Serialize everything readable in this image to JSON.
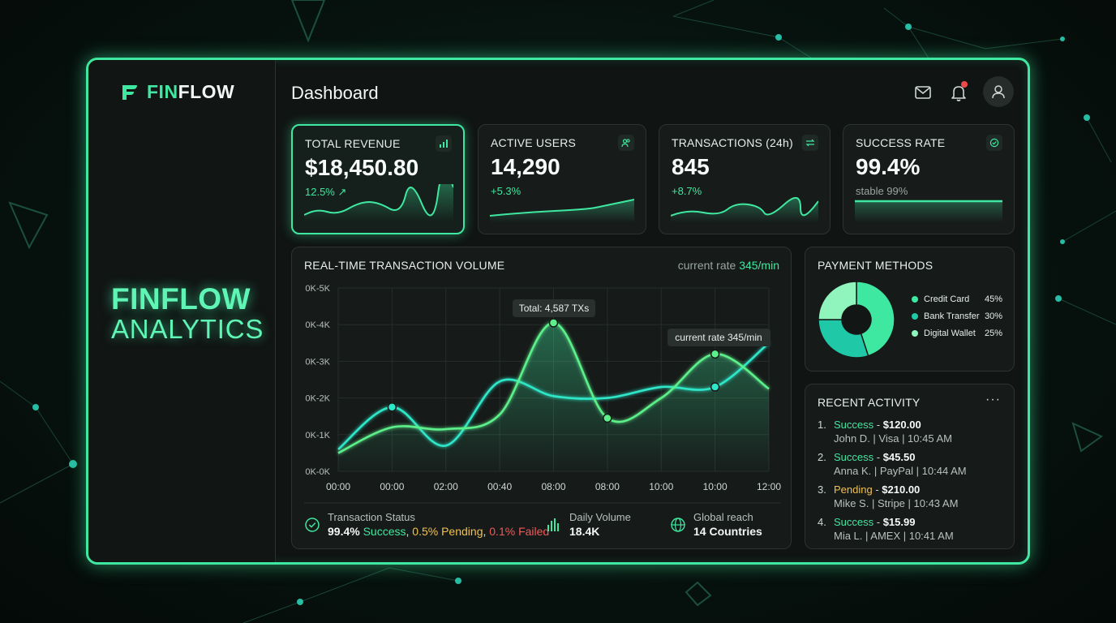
{
  "app": {
    "logo_fin": "FIN",
    "logo_flow": "FLOW",
    "brand_line1": "FINFLOW",
    "brand_line2": "ANALYTICS",
    "page_title": "Dashboard"
  },
  "header_icons": [
    "mail-icon",
    "bell-icon",
    "user-icon"
  ],
  "kpis": [
    {
      "label": "TOTAL REVENUE",
      "value": "$18,450.80",
      "change": "12.5% ↗",
      "icon": "bar-chart-icon"
    },
    {
      "label": "ACTIVE USERS",
      "value": "14,290",
      "change": "+5.3%",
      "icon": "users-icon"
    },
    {
      "label": "TRANSACTIONS (24h)",
      "value": "845",
      "change": "+8.7%",
      "icon": "swap-icon"
    },
    {
      "label": "SUCCESS RATE",
      "value": "99.4%",
      "change": "stable 99%",
      "icon": "check-circle-icon"
    }
  ],
  "volume": {
    "title": "REAL-TIME TRANSACTION VOLUME",
    "rate_prefix": "current rate",
    "rate_value": "345/min",
    "tooltip_peak": "Total: 4,587 TXs",
    "tooltip_rate": "current rate 345/min"
  },
  "chart_data": {
    "type": "line",
    "y_ticks": [
      "0K-0K",
      "0K-1K",
      "0K-2K",
      "0K-3K",
      "0K-4K",
      "0K-5K"
    ],
    "x": [
      "00:00",
      "00:00",
      "02:00",
      "00:40",
      "08:00",
      "08:00",
      "10:00",
      "10:00",
      "12:00"
    ],
    "ylim": [
      0,
      5000
    ],
    "grid": true,
    "series": [
      {
        "color": "#2ee6c8",
        "values": [
          600,
          1750,
          700,
          2450,
          2050,
          2000,
          2300,
          2300,
          3500
        ]
      },
      {
        "color": "#5cf08a",
        "values": [
          500,
          1200,
          1150,
          1550,
          4050,
          1450,
          2000,
          3200,
          2250
        ]
      }
    ]
  },
  "stats": {
    "status_label": "Transaction Status",
    "status_main": "99.4%",
    "status_success": "Success",
    "status_pending": "0.5% Pending",
    "status_failed": "0.1% Failed",
    "daily_label": "Daily Volume",
    "daily_value": "18.4K",
    "reach_label": "Global reach",
    "reach_value": "14 Countries"
  },
  "payment": {
    "title": "PAYMENT METHODS",
    "methods": [
      {
        "name": "Credit Card",
        "pct": "45%",
        "value": 45,
        "color": "#3fe8a0"
      },
      {
        "name": "Bank Transfer",
        "pct": "30%",
        "value": 30,
        "color": "#1fc9a8"
      },
      {
        "name": "Digital Wallet",
        "pct": "25%",
        "value": 25,
        "color": "#8ff5bc"
      }
    ]
  },
  "activity": {
    "title": "RECENT ACTIVITY",
    "more": "···",
    "items": [
      {
        "num": "1.",
        "status": "Success",
        "amount": "$120.00",
        "detail": "John D. | Visa | 10:45 AM"
      },
      {
        "num": "2.",
        "status": "Success",
        "amount": "$45.50",
        "detail": "Anna K. | PayPal | 10:44 AM"
      },
      {
        "num": "3.",
        "status": "Pending",
        "amount": "$210.00",
        "detail": "Mike S. | Stripe | 10:43 AM"
      },
      {
        "num": "4.",
        "status": "Success",
        "amount": "$15.99",
        "detail": "Mia L. | AMEX | 10:41 AM"
      }
    ]
  },
  "colors": {
    "accent": "#3fe8a0",
    "pending": "#f2c14e",
    "failed": "#ef5a5a",
    "background": "#101413"
  }
}
